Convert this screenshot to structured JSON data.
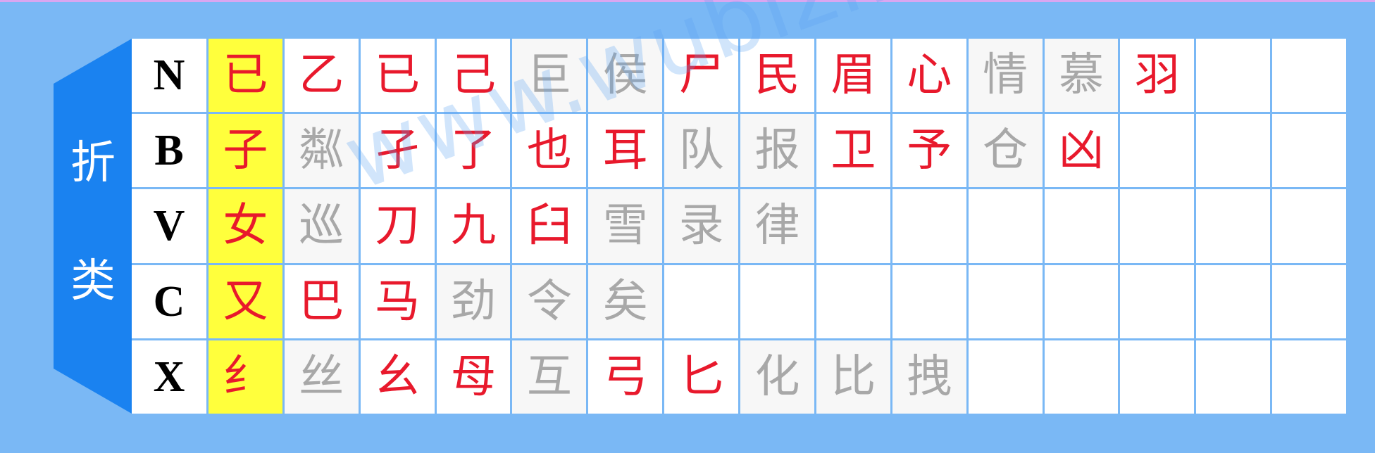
{
  "side_label": [
    "折",
    "类"
  ],
  "rows": [
    {
      "letter": "N",
      "key_char": "已",
      "cells": [
        {
          "char": "乙",
          "style": "red"
        },
        {
          "char": "已",
          "style": "red"
        },
        {
          "char": "己",
          "style": "red"
        },
        {
          "char": "巨",
          "style": "gray"
        },
        {
          "char": "侯",
          "style": "gray"
        },
        {
          "char": "尸",
          "style": "red"
        },
        {
          "char": "民",
          "style": "red"
        },
        {
          "char": "眉",
          "style": "red"
        },
        {
          "char": "心",
          "style": "red"
        },
        {
          "char": "情",
          "style": "gray"
        },
        {
          "char": "慕",
          "style": "gray"
        },
        {
          "char": "羽",
          "style": "red"
        },
        {
          "char": "",
          "style": "empty"
        },
        {
          "char": "",
          "style": "empty"
        }
      ]
    },
    {
      "letter": "B",
      "key_char": "子",
      "cells": [
        {
          "char": "粼",
          "style": "gray"
        },
        {
          "char": "孑",
          "style": "red"
        },
        {
          "char": "了",
          "style": "red"
        },
        {
          "char": "也",
          "style": "red"
        },
        {
          "char": "耳",
          "style": "red"
        },
        {
          "char": "队",
          "style": "gray"
        },
        {
          "char": "报",
          "style": "gray"
        },
        {
          "char": "卫",
          "style": "red"
        },
        {
          "char": "予",
          "style": "red"
        },
        {
          "char": "仓",
          "style": "gray"
        },
        {
          "char": "凶",
          "style": "red"
        },
        {
          "char": "",
          "style": "empty"
        },
        {
          "char": "",
          "style": "empty"
        },
        {
          "char": "",
          "style": "empty"
        }
      ]
    },
    {
      "letter": "V",
      "key_char": "女",
      "cells": [
        {
          "char": "巡",
          "style": "gray"
        },
        {
          "char": "刀",
          "style": "red"
        },
        {
          "char": "九",
          "style": "red"
        },
        {
          "char": "臼",
          "style": "red"
        },
        {
          "char": "雪",
          "style": "gray"
        },
        {
          "char": "录",
          "style": "gray"
        },
        {
          "char": "律",
          "style": "gray"
        },
        {
          "char": "",
          "style": "empty"
        },
        {
          "char": "",
          "style": "empty"
        },
        {
          "char": "",
          "style": "empty"
        },
        {
          "char": "",
          "style": "empty"
        },
        {
          "char": "",
          "style": "empty"
        },
        {
          "char": "",
          "style": "empty"
        },
        {
          "char": "",
          "style": "empty"
        }
      ]
    },
    {
      "letter": "C",
      "key_char": "又",
      "cells": [
        {
          "char": "巴",
          "style": "red"
        },
        {
          "char": "马",
          "style": "red"
        },
        {
          "char": "劲",
          "style": "gray"
        },
        {
          "char": "令",
          "style": "gray"
        },
        {
          "char": "矣",
          "style": "gray"
        },
        {
          "char": "",
          "style": "empty"
        },
        {
          "char": "",
          "style": "empty"
        },
        {
          "char": "",
          "style": "empty"
        },
        {
          "char": "",
          "style": "empty"
        },
        {
          "char": "",
          "style": "empty"
        },
        {
          "char": "",
          "style": "empty"
        },
        {
          "char": "",
          "style": "empty"
        },
        {
          "char": "",
          "style": "empty"
        },
        {
          "char": "",
          "style": "empty"
        }
      ]
    },
    {
      "letter": "X",
      "key_char": "纟",
      "cells": [
        {
          "char": "丝",
          "style": "gray"
        },
        {
          "char": "幺",
          "style": "red"
        },
        {
          "char": "母",
          "style": "red"
        },
        {
          "char": "互",
          "style": "gray"
        },
        {
          "char": "弓",
          "style": "red"
        },
        {
          "char": "匕",
          "style": "red"
        },
        {
          "char": "化",
          "style": "gray"
        },
        {
          "char": "比",
          "style": "gray"
        },
        {
          "char": "拽",
          "style": "gray"
        },
        {
          "char": "",
          "style": "empty"
        },
        {
          "char": "",
          "style": "empty"
        },
        {
          "char": "",
          "style": "empty"
        },
        {
          "char": "",
          "style": "empty"
        },
        {
          "char": "",
          "style": "empty"
        }
      ]
    }
  ],
  "watermark": "www.wubizi.net",
  "colors": {
    "background": "#7ab8f5",
    "tab": "#1a82f0",
    "key_highlight": "#ffff3c",
    "red_char": "#e8192c",
    "gray_char": "#a8a8a8"
  }
}
